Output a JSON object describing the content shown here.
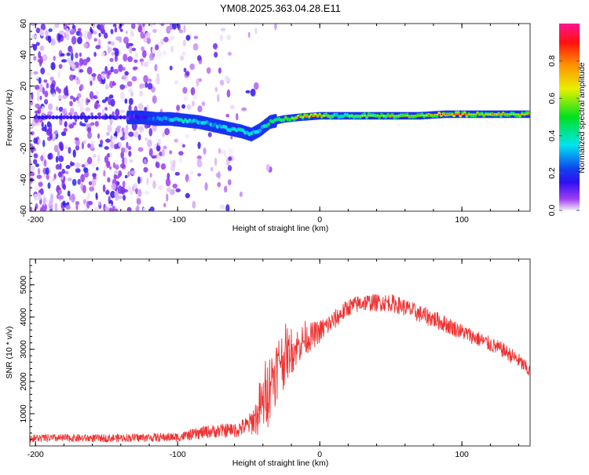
{
  "title": "YM08.2025.363.04.28.E11",
  "chart_data": [
    {
      "type": "heatmap",
      "title": "YM08.2025.363.04.28.E11",
      "xlabel": "Height of straight line (km)",
      "ylabel": "Frequency (Hz)",
      "xlim": [
        -204,
        148
      ],
      "ylim": [
        -60,
        60
      ],
      "xticks": [
        "-200",
        "-100",
        "0",
        "100"
      ],
      "yticks": [
        "-60",
        "-40",
        "-20",
        "0",
        "20",
        "40",
        "60"
      ],
      "grid": false,
      "colorbar": {
        "label": "Normalized spectral amplitude",
        "range": [
          0,
          1
        ],
        "ticks": [
          "0.0",
          "0.2",
          "0.4",
          "0.6",
          "0.8"
        ],
        "colors": [
          "#f4ecfb",
          "#8a2be2",
          "#1010f0",
          "#00e5ee",
          "#00e000",
          "#f0f000",
          "#ff8000",
          "#ff0000",
          "#ff1493"
        ]
      },
      "ridge": [
        {
          "x": -135,
          "freq": 0,
          "amp": 0.15
        },
        {
          "x": -125,
          "freq": 0,
          "amp": 0.25
        },
        {
          "x": -115,
          "freq": -1,
          "amp": 0.4
        },
        {
          "x": -105,
          "freq": -1,
          "amp": 0.5
        },
        {
          "x": -95,
          "freq": -2,
          "amp": 0.65
        },
        {
          "x": -85,
          "freq": -3,
          "amp": 0.5
        },
        {
          "x": -75,
          "freq": -5,
          "amp": 0.5
        },
        {
          "x": -65,
          "freq": -7,
          "amp": 0.55
        },
        {
          "x": -55,
          "freq": -9,
          "amp": 0.6
        },
        {
          "x": -48,
          "freq": -11,
          "amp": 0.55
        },
        {
          "x": -42,
          "freq": -8,
          "amp": 0.5
        },
        {
          "x": -35,
          "freq": -3,
          "amp": 0.7
        },
        {
          "x": -25,
          "freq": -1,
          "amp": 0.75
        },
        {
          "x": -15,
          "freq": 0,
          "amp": 0.85
        },
        {
          "x": 0,
          "freq": 1,
          "amp": 0.9
        },
        {
          "x": 10,
          "freq": 1,
          "amp": 0.55
        },
        {
          "x": 40,
          "freq": 1,
          "amp": 0.7
        },
        {
          "x": 70,
          "freq": 1,
          "amp": 0.75
        },
        {
          "x": 88,
          "freq": 2,
          "amp": 0.95
        },
        {
          "x": 110,
          "freq": 2,
          "amp": 0.8
        },
        {
          "x": 148,
          "freq": 2,
          "amp": 0.8
        }
      ],
      "noise_extent_x": [
        -204,
        -55
      ],
      "noise_amp": 0.12
    },
    {
      "type": "line",
      "xlabel": "Height of straight line (km)",
      "ylabel": "SNR (10 * v/v)",
      "xlim": [
        -204,
        148
      ],
      "ylim": [
        0,
        5800
      ],
      "xticks": [
        "-200",
        "-100",
        "0",
        "100"
      ],
      "yticks": [
        "1000",
        "2000",
        "3000",
        "4000",
        "5000"
      ],
      "grid": false,
      "series": [
        {
          "name": "SNR",
          "color": "#ee3333",
          "x": [
            -204,
            -150,
            -100,
            -90,
            -80,
            -70,
            -60,
            -50,
            -45,
            -40,
            -35,
            -30,
            -25,
            -20,
            -10,
            0,
            10,
            20,
            30,
            40,
            50,
            60,
            70,
            80,
            90,
            100,
            110,
            120,
            130,
            140,
            148
          ],
          "mean": [
            230,
            230,
            260,
            330,
            420,
            450,
            480,
            650,
            900,
            1300,
            2000,
            2600,
            2800,
            3000,
            3300,
            3550,
            3900,
            4300,
            4450,
            4450,
            4450,
            4300,
            4100,
            3950,
            3750,
            3550,
            3350,
            3150,
            2950,
            2650,
            2300
          ],
          "spread": [
            200,
            200,
            230,
            280,
            330,
            350,
            380,
            500,
            900,
            1600,
            1600,
            1500,
            1300,
            1000,
            800,
            600,
            500,
            450,
            450,
            450,
            450,
            450,
            450,
            450,
            450,
            400,
            400,
            400,
            380,
            380,
            380
          ]
        }
      ]
    }
  ]
}
